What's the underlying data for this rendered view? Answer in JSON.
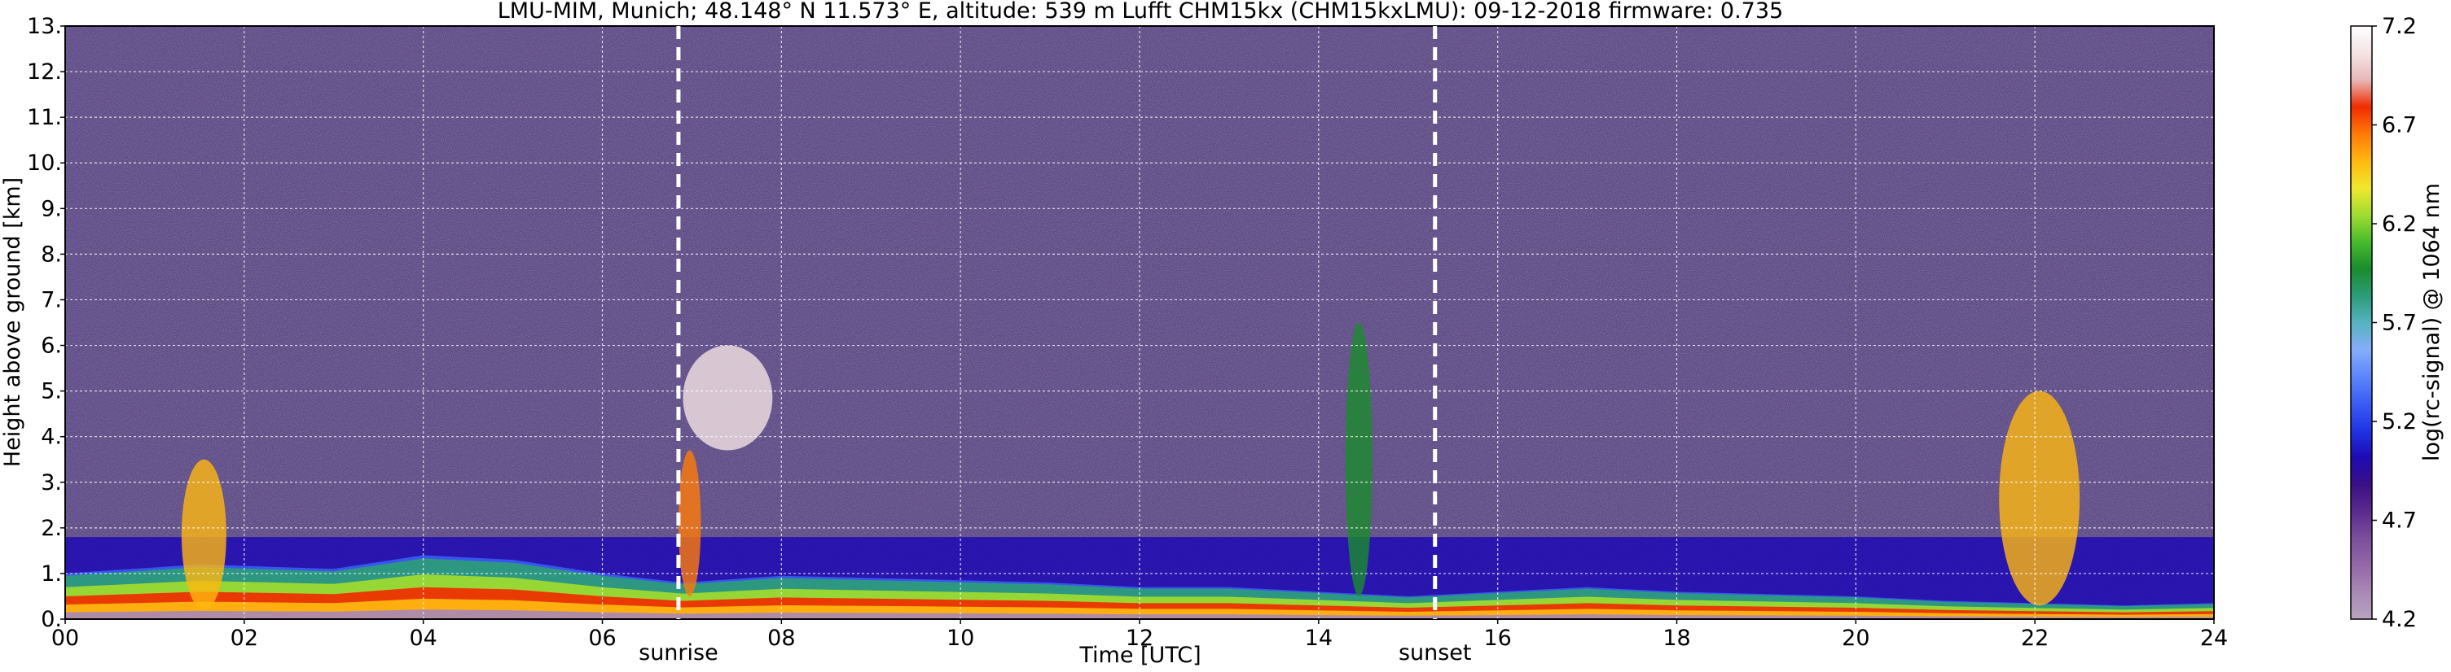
{
  "chart_data": {
    "type": "heatmap",
    "title": "LMU-MIM, Munich; 48.148° N 11.573° E, altitude: 539 m    Lufft CHM15kx (CHM15kxLMU): 09-12-2018    firmware: 0.735",
    "xlabel": "Time [UTC]",
    "ylabel": "Height above ground [km]",
    "xlim": [
      0,
      24
    ],
    "ylim": [
      0,
      13
    ],
    "x_ticks": [
      "00",
      "02",
      "04",
      "06",
      "08",
      "10",
      "12",
      "14",
      "16",
      "18",
      "20",
      "22",
      "24"
    ],
    "y_ticks": [
      "0.",
      "1.",
      "2.",
      "3.",
      "4.",
      "5.",
      "6.",
      "7.",
      "8.",
      "9.",
      "10.",
      "11.",
      "12.",
      "13."
    ],
    "grid": true,
    "colorbar": {
      "label": "log(rc-signal) @ 1064 nm",
      "range": [
        4.2,
        7.2
      ],
      "ticks": [
        "4.2",
        "4.7",
        "5.2",
        "5.7",
        "6.2",
        "6.7",
        "7.2"
      ],
      "colors": [
        "#b8a4c0",
        "#a888b4",
        "#9468a8",
        "#7a4e9c",
        "#5a2a8e",
        "#3a0f86",
        "#1e0ab4",
        "#2034e4",
        "#3a5cf4",
        "#5c86fc",
        "#84aefa",
        "#56b2c0",
        "#2c9c78",
        "#1a8c2c",
        "#48bc2c",
        "#a0dc30",
        "#f0e82c",
        "#ffb810",
        "#ff7a08",
        "#f02c00",
        "#e8b8b8",
        "#f4e4e4",
        "#ffffff"
      ]
    },
    "annotations": [
      {
        "text": "sunrise",
        "x": 6.85
      },
      {
        "text": "sunset",
        "x": 15.3
      }
    ],
    "layers": {
      "boundary_layer_top_km": [
        [
          0,
          1.0
        ],
        [
          1.5,
          1.2
        ],
        [
          3,
          1.1
        ],
        [
          4,
          1.4
        ],
        [
          5,
          1.3
        ],
        [
          6,
          1.0
        ],
        [
          6.9,
          0.8
        ],
        [
          8,
          0.95
        ],
        [
          9,
          0.9
        ],
        [
          10,
          0.85
        ],
        [
          11,
          0.8
        ],
        [
          12,
          0.7
        ],
        [
          13,
          0.7
        ],
        [
          14,
          0.6
        ],
        [
          15,
          0.5
        ],
        [
          16,
          0.6
        ],
        [
          17,
          0.7
        ],
        [
          18,
          0.6
        ],
        [
          19,
          0.55
        ],
        [
          20,
          0.5
        ],
        [
          21,
          0.4
        ],
        [
          22,
          0.35
        ],
        [
          23,
          0.3
        ],
        [
          24,
          0.35
        ]
      ],
      "aerosol_layer_top_km": 1.8,
      "cloud_features": [
        {
          "x": [
            1.3,
            1.8
          ],
          "height": [
            0.2,
            3.5
          ],
          "value": 6.5
        },
        {
          "x": [
            6.9,
            7.9
          ],
          "height": [
            3.7,
            6.0
          ],
          "value": 7.0
        },
        {
          "x": [
            6.85,
            7.1
          ],
          "height": [
            0.5,
            3.7
          ],
          "value": 6.6
        },
        {
          "x": [
            14.3,
            14.6
          ],
          "height": [
            0.5,
            6.5
          ],
          "value": 6.0
        },
        {
          "x": [
            21.6,
            22.5
          ],
          "height": [
            0.3,
            5.0
          ],
          "value": 6.5
        }
      ]
    }
  }
}
